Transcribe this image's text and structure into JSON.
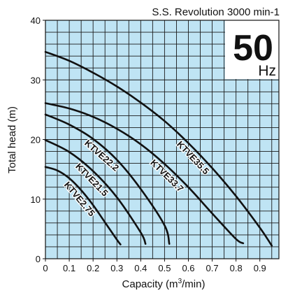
{
  "header": {
    "speed_note": "S.S. Revolution 3000 min-1"
  },
  "frequency_badge": {
    "value": "50",
    "unit": "Hz"
  },
  "chart_data": {
    "type": "line",
    "title": "",
    "xlabel": "Capacity (m3/min)",
    "xlabel_main": "Capacity (m",
    "xlabel_sup": "3",
    "xlabel_end": "/min)",
    "ylabel": "Total head (m)",
    "xlim": [
      0,
      0.98
    ],
    "ylim": [
      0,
      40
    ],
    "x_ticks": [
      "0",
      "0.1",
      "0.2",
      "0.3",
      "0.4",
      "0.5",
      "0.6",
      "0.7",
      "0.8",
      "0.9"
    ],
    "y_ticks": [
      "0",
      "10",
      "20",
      "30",
      "40"
    ],
    "grid": true,
    "grid_step_x": 0.05,
    "grid_step_y": 2,
    "grid_color": "#bfe4f4",
    "series": [
      {
        "name": "KTVE35.5",
        "x": [
          0,
          0.1,
          0.2,
          0.3,
          0.4,
          0.5,
          0.6,
          0.7,
          0.8,
          0.9,
          0.95
        ],
        "y": [
          34.7,
          33.2,
          31.2,
          28.9,
          26.2,
          23.1,
          19.4,
          15.2,
          10.5,
          5.2,
          2.2
        ]
      },
      {
        "name": "KTVE33.7",
        "x": [
          0,
          0.1,
          0.2,
          0.3,
          0.4,
          0.5,
          0.6,
          0.7,
          0.8,
          0.83
        ],
        "y": [
          26.1,
          25.2,
          23.8,
          21.8,
          19.2,
          15.9,
          12.0,
          7.6,
          3.3,
          2.6
        ]
      },
      {
        "name": "KTVE22.2",
        "x": [
          0,
          0.1,
          0.2,
          0.3,
          0.4,
          0.5,
          0.52
        ],
        "y": [
          24.2,
          22.5,
          20.1,
          16.6,
          11.7,
          5.6,
          2.5
        ]
      },
      {
        "name": "KTVE21.5",
        "x": [
          0,
          0.1,
          0.2,
          0.3,
          0.4,
          0.42
        ],
        "y": [
          19.9,
          17.9,
          14.7,
          10.3,
          4.4,
          2.5
        ]
      },
      {
        "name": "KTVE2.75",
        "x": [
          0,
          0.05,
          0.1,
          0.15,
          0.2,
          0.25,
          0.3,
          0.315
        ],
        "y": [
          15.4,
          14.8,
          13.5,
          11.5,
          9.0,
          6.1,
          3.2,
          2.4
        ]
      }
    ]
  }
}
